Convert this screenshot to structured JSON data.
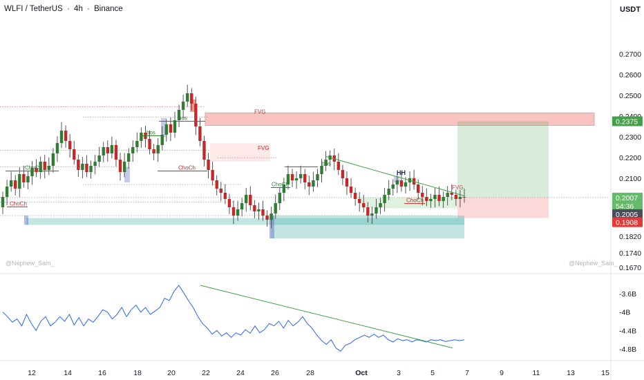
{
  "header": {
    "symbol": "WLFI / TetherUS",
    "interval": "4h",
    "exchange": "Binance",
    "separator": "·"
  },
  "currency": "USDT",
  "watermark_left": "@Nephew_Sam_",
  "watermark_right": "@Nephew_Sam_",
  "colors": {
    "up": "#2e7d32",
    "down": "#c62828",
    "green_tag": "#43a047",
    "red_tag": "#e53935",
    "dark_tag": "#4a4e5c",
    "fvg_red": "rgba(239,83,80,0.35)",
    "fvg_red_light": "rgba(239,83,80,0.13)",
    "teal_zone": "rgba(38,166,154,0.28)",
    "target_zone": "rgba(76,175,80,0.22)",
    "stop_zone": "rgba(239,83,80,0.22)",
    "trendline": "#43a047",
    "indicator_line": "#2962ff"
  },
  "labels": {
    "fvg_top": "FVG",
    "fvg_mid": "FVG",
    "fvg_right": "FVG",
    "bos1": "bos",
    "bos2": "bos",
    "bos3": "bos",
    "choch1": "ChoCh",
    "choch2": "ChoCh",
    "choch3": "ChoCh",
    "choch4": "ChoCh",
    "choch5": "ChoCh",
    "hh": "HH"
  },
  "chart_data": [
    {
      "type": "candlestick",
      "title": "WLFI / TetherUS · 4h · Binance",
      "y_axis_position": "right",
      "ylim": [
        0.16,
        0.28
      ],
      "y_ticks": [
        "0.2700",
        "0.2600",
        "0.2500",
        "0.2400",
        "0.2300",
        "0.2200",
        "0.2100",
        "0.2000",
        "0.1900",
        "0.1820",
        "0.1740",
        "0.1670"
      ],
      "x_ticks": [
        "12",
        "14",
        "16",
        "18",
        "20",
        "22",
        "24",
        "26",
        "28",
        "Oct",
        "3",
        "5",
        "7",
        "9",
        "11",
        "13",
        "15"
      ],
      "price_tags": [
        {
          "label": "0.2375",
          "kind": "target"
        },
        {
          "label": "0.2007",
          "kind": "last"
        },
        {
          "label": "54:36",
          "kind": "countdown"
        },
        {
          "label": "0.2005",
          "kind": "entry"
        },
        {
          "label": "0.1908",
          "kind": "stop"
        }
      ],
      "closes": [
        0.201,
        0.206,
        0.209,
        0.205,
        0.212,
        0.208,
        0.211,
        0.215,
        0.213,
        0.218,
        0.214,
        0.216,
        0.222,
        0.227,
        0.233,
        0.228,
        0.224,
        0.219,
        0.214,
        0.217,
        0.213,
        0.216,
        0.218,
        0.221,
        0.225,
        0.222,
        0.226,
        0.219,
        0.213,
        0.218,
        0.222,
        0.225,
        0.228,
        0.232,
        0.229,
        0.224,
        0.222,
        0.226,
        0.231,
        0.236,
        0.232,
        0.238,
        0.243,
        0.247,
        0.251,
        0.246,
        0.235,
        0.228,
        0.219,
        0.214,
        0.209,
        0.205,
        0.203,
        0.2,
        0.196,
        0.192,
        0.195,
        0.198,
        0.202,
        0.197,
        0.194,
        0.195,
        0.192,
        0.19,
        0.193,
        0.198,
        0.203,
        0.207,
        0.212,
        0.209,
        0.21,
        0.212,
        0.208,
        0.206,
        0.209,
        0.212,
        0.216,
        0.219,
        0.221,
        0.218,
        0.214,
        0.21,
        0.206,
        0.203,
        0.2,
        0.198,
        0.196,
        0.192,
        0.193,
        0.196,
        0.198,
        0.202,
        0.205,
        0.207,
        0.209,
        0.206,
        0.208,
        0.21,
        0.207,
        0.203,
        0.201,
        0.199,
        0.2,
        0.202,
        0.199,
        0.201,
        0.203,
        0.202,
        0.2,
        0.201,
        0.2007
      ]
    },
    {
      "type": "line",
      "title": "",
      "y_axis_position": "right",
      "y_ticks": [
        "-3.6B",
        "-4B",
        "-4.4B",
        "-4.8B"
      ],
      "ylim": [
        -4.95,
        -3.3
      ],
      "values": [
        -4.0,
        -4.1,
        -4.22,
        -4.15,
        -4.3,
        -4.05,
        -4.25,
        -4.4,
        -4.2,
        -4.1,
        -4.3,
        -4.22,
        -4.1,
        -4.2,
        -4.05,
        -4.28,
        -4.12,
        -4.3,
        -4.15,
        -4.22,
        -4.1,
        -3.95,
        -4.0,
        -4.15,
        -4.05,
        -3.9,
        -4.1,
        -3.95,
        -3.85,
        -4.0,
        -3.9,
        -4.05,
        -3.98,
        -3.9,
        -3.7,
        -3.75,
        -3.55,
        -3.42,
        -3.58,
        -3.75,
        -3.9,
        -4.1,
        -4.25,
        -4.35,
        -4.48,
        -4.4,
        -4.52,
        -4.45,
        -4.55,
        -4.45,
        -4.5,
        -4.38,
        -4.46,
        -4.3,
        -4.45,
        -4.38,
        -4.25,
        -4.3,
        -4.2,
        -4.35,
        -4.18,
        -4.3,
        -4.22,
        -4.1,
        -4.25,
        -4.35,
        -4.5,
        -4.62,
        -4.7,
        -4.6,
        -4.78,
        -4.85,
        -4.72,
        -4.68,
        -4.6,
        -4.55,
        -4.5,
        -4.55,
        -4.48,
        -4.55,
        -4.5,
        -4.6,
        -4.65,
        -4.58,
        -4.62,
        -4.6,
        -4.65,
        -4.6,
        -4.62,
        -4.65,
        -4.6,
        -4.62,
        -4.6,
        -4.64,
        -4.62,
        -4.6,
        -4.62,
        -4.6
      ]
    }
  ]
}
